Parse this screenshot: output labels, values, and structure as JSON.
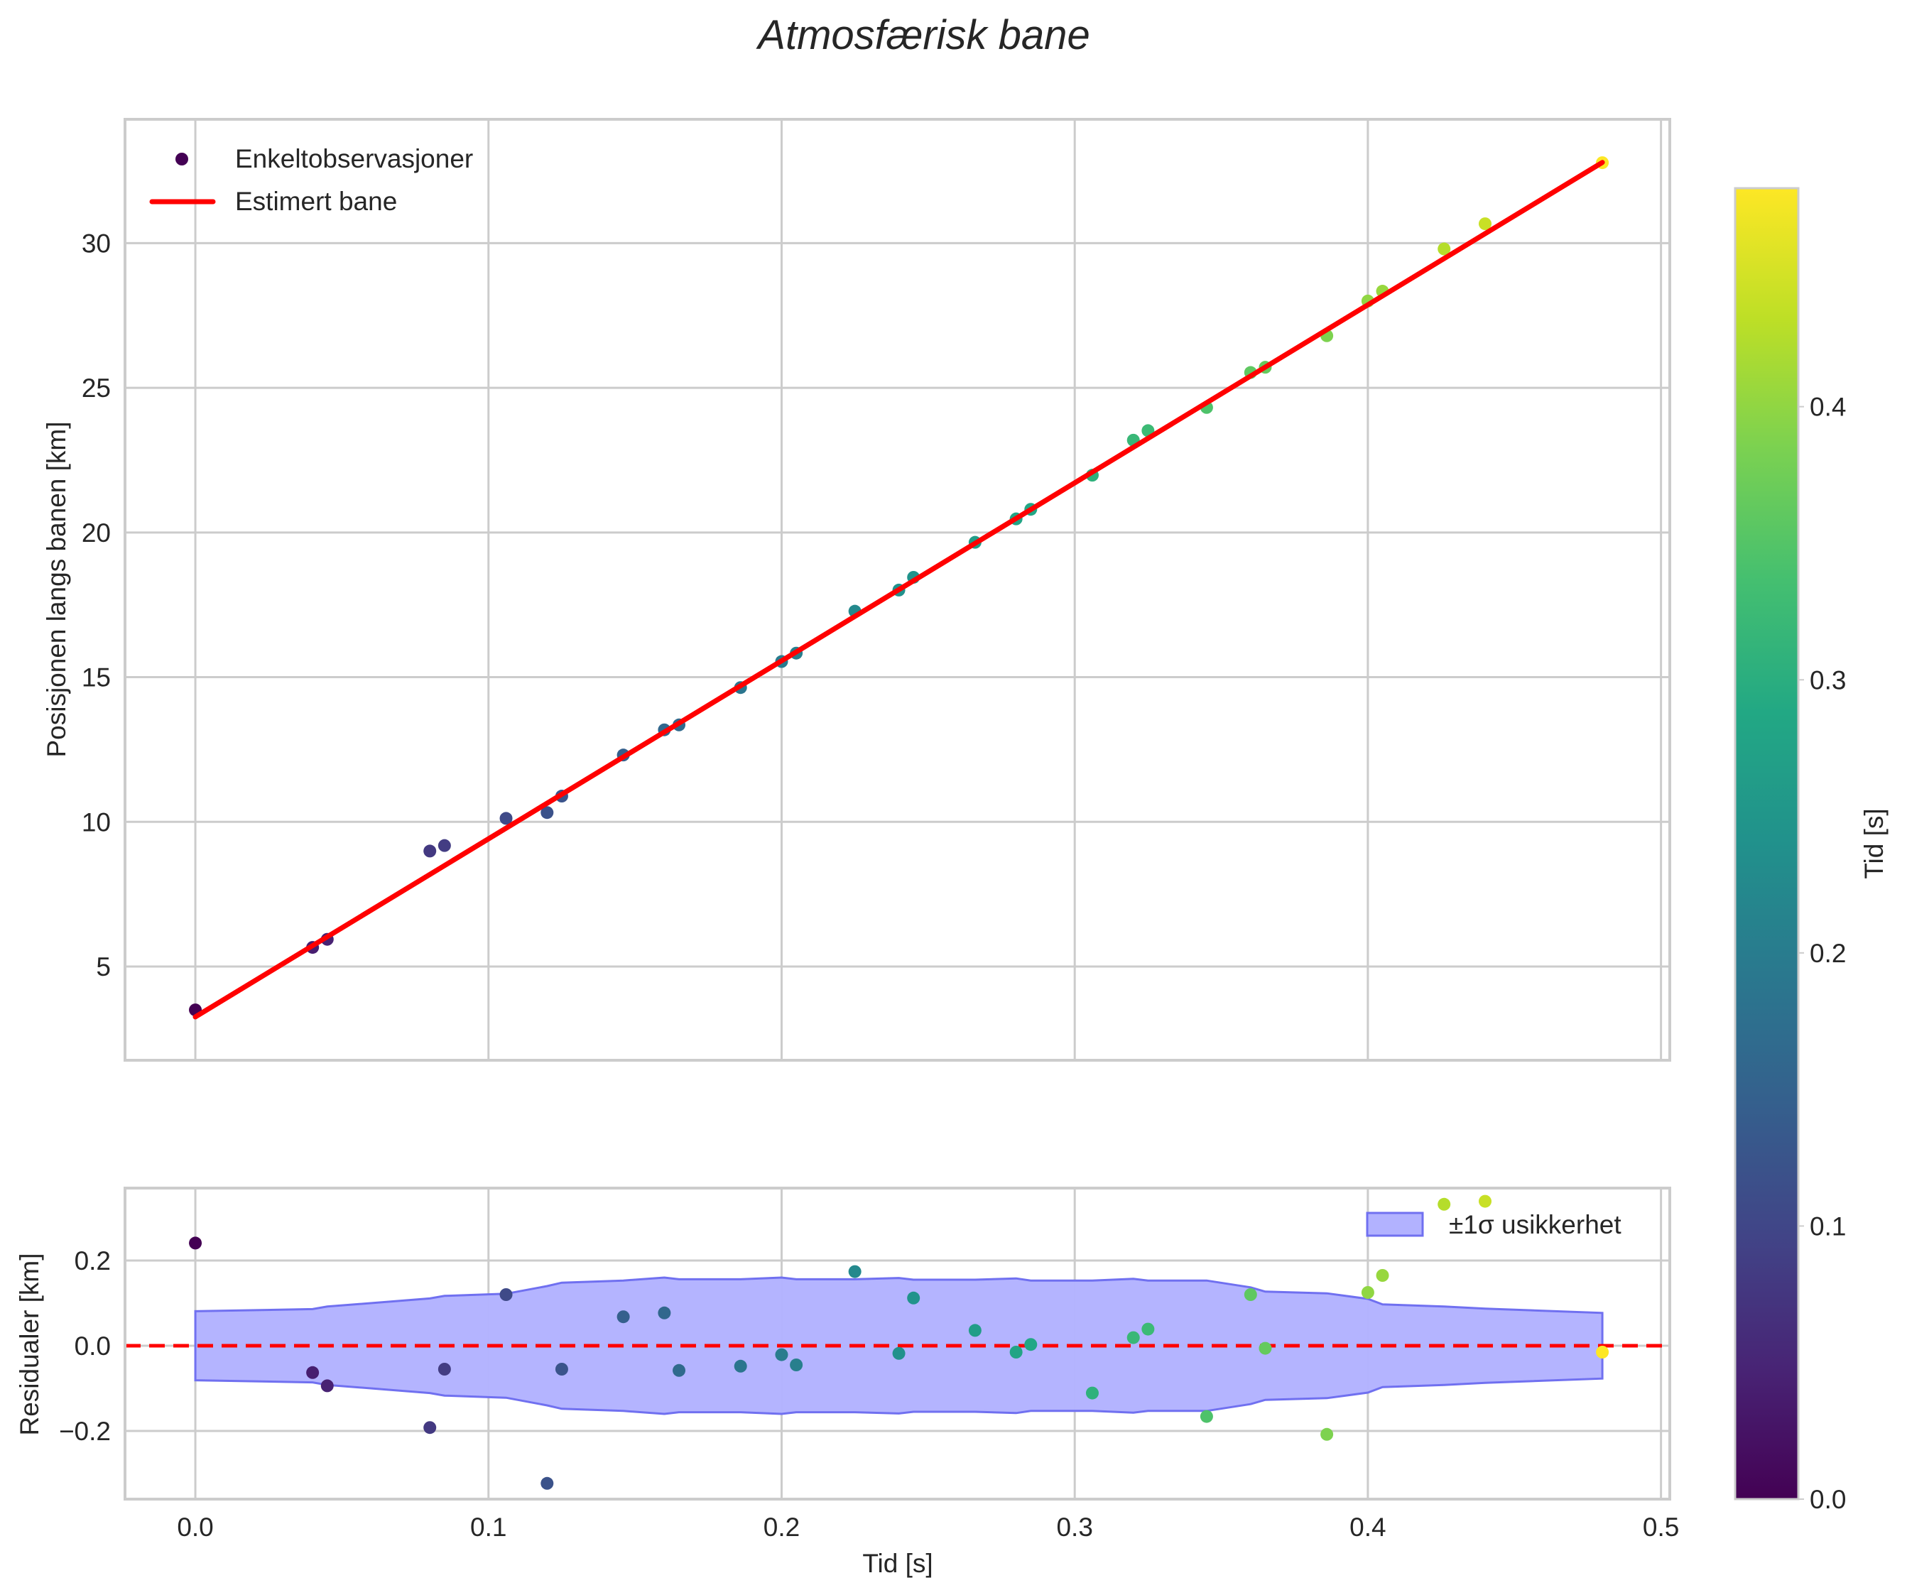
{
  "title": "Atmosfærisk bane",
  "colors": {
    "fit_line": "#ff0000",
    "zero_line": "#ff0000",
    "band_fill": "#b2b2ff",
    "band_edge": "#7070f0",
    "grid": "#cccccc",
    "text": "#262626"
  },
  "chart_data": [
    {
      "panel": "top",
      "type": "scatter",
      "title": "Atmosfærisk bane",
      "xlabel": "",
      "ylabel": "Posisjonen langs banen [km]",
      "xlim": [
        -0.024,
        0.503
      ],
      "ylim": [
        1.76,
        34.28
      ],
      "xticks": [
        0.0,
        0.1,
        0.2,
        0.3,
        0.4,
        0.5
      ],
      "yticks": [
        5,
        10,
        15,
        20,
        25,
        30
      ],
      "ytick_labels": [
        "5",
        "10",
        "15",
        "20",
        "25",
        "30"
      ],
      "grid": true,
      "legend": {
        "position": "upper left",
        "entries": [
          "Enkeltobservasjoner",
          "Estimert bane"
        ]
      },
      "series": [
        {
          "name": "Enkeltobservasjoner",
          "kind": "scatter",
          "colormap": "viridis",
          "color_by": "t",
          "x": [
            0.0,
            0.04,
            0.045,
            0.08,
            0.085,
            0.106,
            0.12,
            0.125,
            0.146,
            0.16,
            0.165,
            0.186,
            0.2,
            0.205,
            0.225,
            0.24,
            0.245,
            0.266,
            0.28,
            0.285,
            0.306,
            0.32,
            0.325,
            0.345,
            0.36,
            0.365,
            0.386,
            0.4,
            0.405,
            0.426,
            0.44,
            0.48
          ],
          "y": [
            3.5,
            5.66,
            5.94,
            8.99,
            9.18,
            10.12,
            10.32,
            10.89,
            12.31,
            13.18,
            13.35,
            14.64,
            15.54,
            15.83,
            17.28,
            18.01,
            18.45,
            19.66,
            20.47,
            20.8,
            21.98,
            23.19,
            23.52,
            24.32,
            25.53,
            25.71,
            26.8,
            28.0,
            28.34,
            29.8,
            30.67,
            32.78
          ]
        },
        {
          "name": "Estimert bane",
          "kind": "line",
          "x": [
            0.0,
            0.48
          ],
          "y": [
            3.26,
            32.79
          ]
        }
      ]
    },
    {
      "panel": "bottom",
      "type": "scatter",
      "xlabel": "Tid [s]",
      "ylabel": "Residualer [km]",
      "xlim": [
        -0.024,
        0.503
      ],
      "ylim": [
        -0.36,
        0.37
      ],
      "xticks": [
        0.0,
        0.1,
        0.2,
        0.3,
        0.4,
        0.5
      ],
      "xtick_labels": [
        "0.0",
        "0.1",
        "0.2",
        "0.3",
        "0.4",
        "0.5"
      ],
      "yticks": [
        -0.2,
        0.0,
        0.2
      ],
      "ytick_labels": [
        "−0.2",
        "0.0",
        "0.2"
      ],
      "grid": true,
      "legend": {
        "position": "upper right",
        "entries": [
          "±1σ usikkerhet"
        ]
      },
      "series": [
        {
          "name": "Residualer",
          "kind": "scatter",
          "colormap": "viridis",
          "x": [
            0.0,
            0.04,
            0.045,
            0.08,
            0.085,
            0.106,
            0.12,
            0.125,
            0.146,
            0.16,
            0.165,
            0.186,
            0.2,
            0.205,
            0.225,
            0.24,
            0.245,
            0.266,
            0.28,
            0.285,
            0.306,
            0.32,
            0.325,
            0.345,
            0.36,
            0.365,
            0.386,
            0.4,
            0.405,
            0.426,
            0.44,
            0.48
          ],
          "y": [
            0.241,
            -0.063,
            -0.094,
            -0.192,
            -0.055,
            0.12,
            -0.323,
            -0.055,
            0.068,
            0.077,
            -0.058,
            -0.048,
            -0.021,
            -0.045,
            0.174,
            -0.018,
            0.112,
            0.036,
            -0.015,
            0.003,
            -0.111,
            0.019,
            0.039,
            -0.166,
            0.12,
            -0.006,
            -0.208,
            0.125,
            0.165,
            0.332,
            0.339,
            -0.015
          ]
        },
        {
          "name": "±1σ usikkerhet",
          "kind": "band",
          "x": [
            0.0,
            0.04,
            0.045,
            0.08,
            0.085,
            0.106,
            0.12,
            0.125,
            0.146,
            0.16,
            0.165,
            0.186,
            0.2,
            0.205,
            0.225,
            0.24,
            0.245,
            0.266,
            0.28,
            0.285,
            0.306,
            0.32,
            0.325,
            0.345,
            0.36,
            0.365,
            0.386,
            0.4,
            0.405,
            0.426,
            0.44,
            0.48
          ],
          "sigma": [
            0.081,
            0.086,
            0.092,
            0.111,
            0.117,
            0.122,
            0.14,
            0.148,
            0.153,
            0.16,
            0.156,
            0.156,
            0.16,
            0.156,
            0.156,
            0.159,
            0.155,
            0.155,
            0.158,
            0.153,
            0.153,
            0.157,
            0.153,
            0.153,
            0.137,
            0.127,
            0.123,
            0.11,
            0.097,
            0.092,
            0.087,
            0.077
          ]
        },
        {
          "name": "Zero",
          "kind": "hline",
          "y": 0.0,
          "style": "dashed"
        }
      ]
    },
    {
      "panel": "colorbar",
      "type": "heatmap",
      "colormap": "viridis",
      "label": "Tid [s]",
      "range": [
        0.0,
        0.48
      ],
      "ticks": [
        0.0,
        0.1,
        0.2,
        0.3,
        0.4
      ],
      "tick_labels": [
        "0.0",
        "0.1",
        "0.2",
        "0.3",
        "0.4"
      ]
    }
  ],
  "labels": {
    "top_ylabel": "Posisjonen langs banen [km]",
    "bottom_ylabel": "Residualer [km]",
    "xlabel": "Tid [s]",
    "colorbar_label": "Tid [s]",
    "legend_obs": "Enkeltobservasjoner",
    "legend_fit": "Estimert bane",
    "legend_band": "±1σ usikkerhet"
  }
}
